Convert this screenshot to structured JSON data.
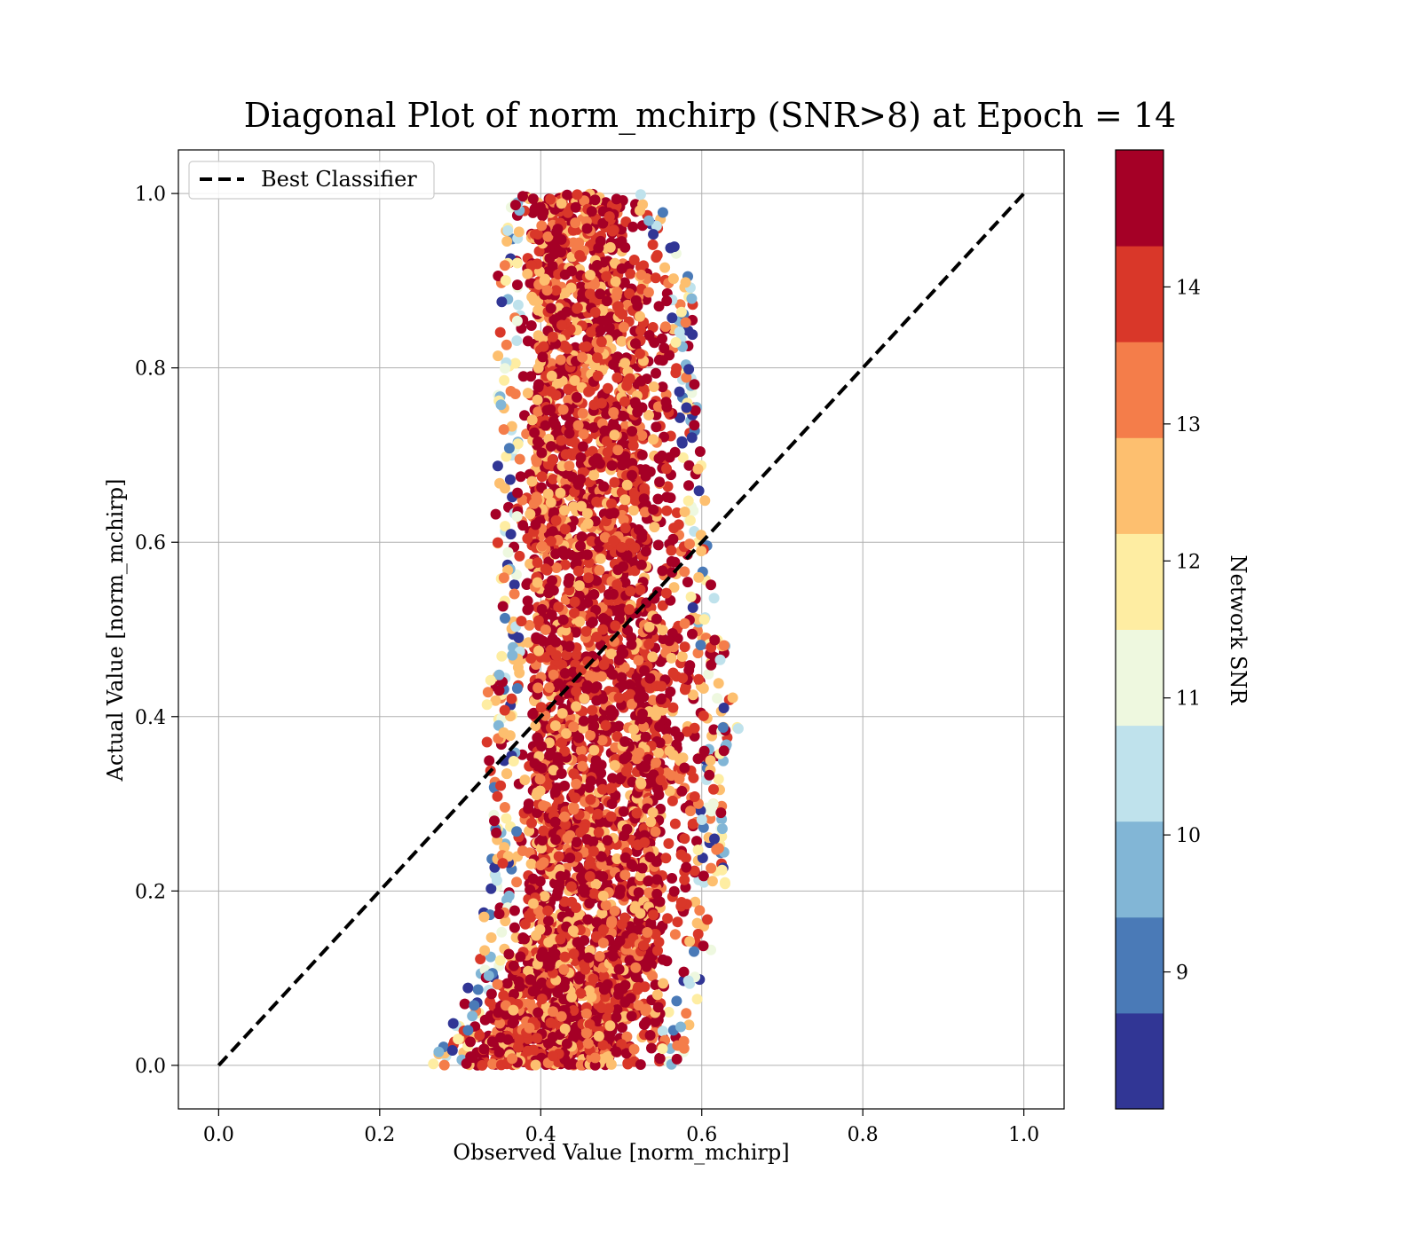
{
  "chart_data": {
    "type": "scatter",
    "title": "Diagonal Plot of norm_mchirp (SNR>8) at Epoch = 14",
    "xlabel": "Observed Value [norm_mchirp]",
    "ylabel": "Actual Value [norm_mchirp]",
    "xlim": [
      -0.05,
      1.05
    ],
    "ylim": [
      -0.05,
      1.05
    ],
    "xticks": [
      "0.0",
      "0.2",
      "0.4",
      "0.6",
      "0.8",
      "1.0"
    ],
    "yticks": [
      "0.0",
      "0.2",
      "0.4",
      "0.6",
      "0.8",
      "1.0"
    ],
    "grid": true,
    "legend": {
      "placement": "upper-left",
      "entries": [
        {
          "label": "Best Classifier",
          "style": "dashed",
          "color": "#000000"
        }
      ]
    },
    "reference_line": {
      "name": "Best Classifier",
      "x": [
        0,
        1
      ],
      "y": [
        0,
        1
      ]
    },
    "colorbar": {
      "label": "Network SNR",
      "min": 8.0,
      "max": 15.0,
      "ticks": [
        "9",
        "10",
        "11",
        "12",
        "13",
        "14"
      ],
      "colors": [
        "#313695",
        "#4a7ab7",
        "#82b6d6",
        "#bfe2ec",
        "#eef8df",
        "#feeda2",
        "#fdbf6f",
        "#f47d4a",
        "#d93729",
        "#a50026"
      ]
    },
    "scatter_profile": [
      {
        "y": 0.0,
        "x_min": 0.265,
        "x_max": 0.575
      },
      {
        "y": 0.05,
        "x_min": 0.29,
        "x_max": 0.59
      },
      {
        "y": 0.1,
        "x_min": 0.31,
        "x_max": 0.6
      },
      {
        "y": 0.15,
        "x_min": 0.325,
        "x_max": 0.62
      },
      {
        "y": 0.2,
        "x_min": 0.33,
        "x_max": 0.63
      },
      {
        "y": 0.3,
        "x_min": 0.34,
        "x_max": 0.63
      },
      {
        "y": 0.4,
        "x_min": 0.33,
        "x_max": 0.65
      },
      {
        "y": 0.5,
        "x_min": 0.345,
        "x_max": 0.625
      },
      {
        "y": 0.6,
        "x_min": 0.34,
        "x_max": 0.61
      },
      {
        "y": 0.7,
        "x_min": 0.345,
        "x_max": 0.6
      },
      {
        "y": 0.8,
        "x_min": 0.345,
        "x_max": 0.6
      },
      {
        "y": 0.9,
        "x_min": 0.345,
        "x_max": 0.585
      },
      {
        "y": 1.0,
        "x_min": 0.355,
        "x_max": 0.545
      }
    ]
  }
}
